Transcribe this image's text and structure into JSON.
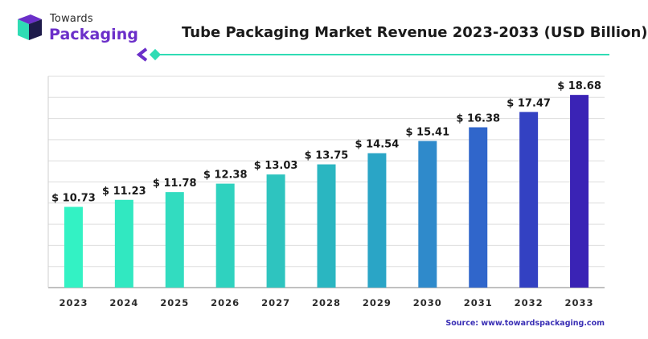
{
  "brand": {
    "name_top": "Towards",
    "name_bottom": "Packaging",
    "logo_icon": "towards-packaging-logo-icon",
    "colors": {
      "teal": "#2fdcb4",
      "purple": "#6b2fc9",
      "dark": "#1e1b4b"
    }
  },
  "title": "Tube Packaging Market Revenue 2023-2033 (USD Billion)",
  "source": {
    "label": "Source:",
    "url": "www.towardspackaging.com"
  },
  "chart_data": {
    "type": "bar",
    "title": "Tube Packaging Market Revenue 2023-2033 (USD Billion)",
    "xlabel": "",
    "ylabel": "",
    "categories": [
      "2023",
      "2024",
      "2025",
      "2026",
      "2027",
      "2028",
      "2029",
      "2030",
      "2031",
      "2032",
      "2033"
    ],
    "values": [
      10.73,
      11.23,
      11.78,
      12.38,
      13.03,
      13.75,
      14.54,
      15.41,
      16.38,
      17.47,
      18.68
    ],
    "value_labels": [
      "$ 10.73",
      "$ 11.23",
      "$ 11.78",
      "$ 12.38",
      "$ 13.03",
      "$ 13.75",
      "$ 14.54",
      "$ 15.41",
      "$ 16.38",
      "$ 17.47",
      "$ 18.68"
    ],
    "bar_colors": [
      "#33f2c4",
      "#31e8c1",
      "#32dcc0",
      "#2fd2bf",
      "#2ec4bf",
      "#2ab6c1",
      "#2aa5c6",
      "#2f8acb",
      "#3066cb",
      "#3341c2",
      "#3a23b5"
    ],
    "ylim": [
      5,
      20
    ],
    "grid": true,
    "legend": "none"
  }
}
